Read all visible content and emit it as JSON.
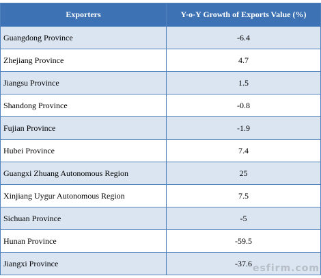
{
  "table": {
    "headers": {
      "exporter": "Exporters",
      "growth": "Y-o-Y Growth of Exports Value (%)"
    },
    "rows": [
      {
        "name": "Guangdong Province",
        "value": "-6.4"
      },
      {
        "name": "Zhejiang Province",
        "value": "4.7"
      },
      {
        "name": "Jiangsu Province",
        "value": "1.5"
      },
      {
        "name": "Shandong Province",
        "value": "-0.8"
      },
      {
        "name": "Fujian Province",
        "value": "-1.9"
      },
      {
        "name": "Hubei Province",
        "value": "7.4"
      },
      {
        "name": "Guangxi Zhuang Autonomous Region",
        "value": "25"
      },
      {
        "name": "Xinjiang Uygur Autonomous Region",
        "value": "7.5"
      },
      {
        "name": "Sichuan Province",
        "value": "-5"
      },
      {
        "name": "Hunan Province",
        "value": "-59.5"
      },
      {
        "name": "Jiangxi Province",
        "value": "-37.6"
      }
    ]
  },
  "watermark": "esfirm.com",
  "colors": {
    "header_bg": "#3d73b4",
    "stripe_bg": "#dbe5f1",
    "border": "#4f81bd"
  }
}
